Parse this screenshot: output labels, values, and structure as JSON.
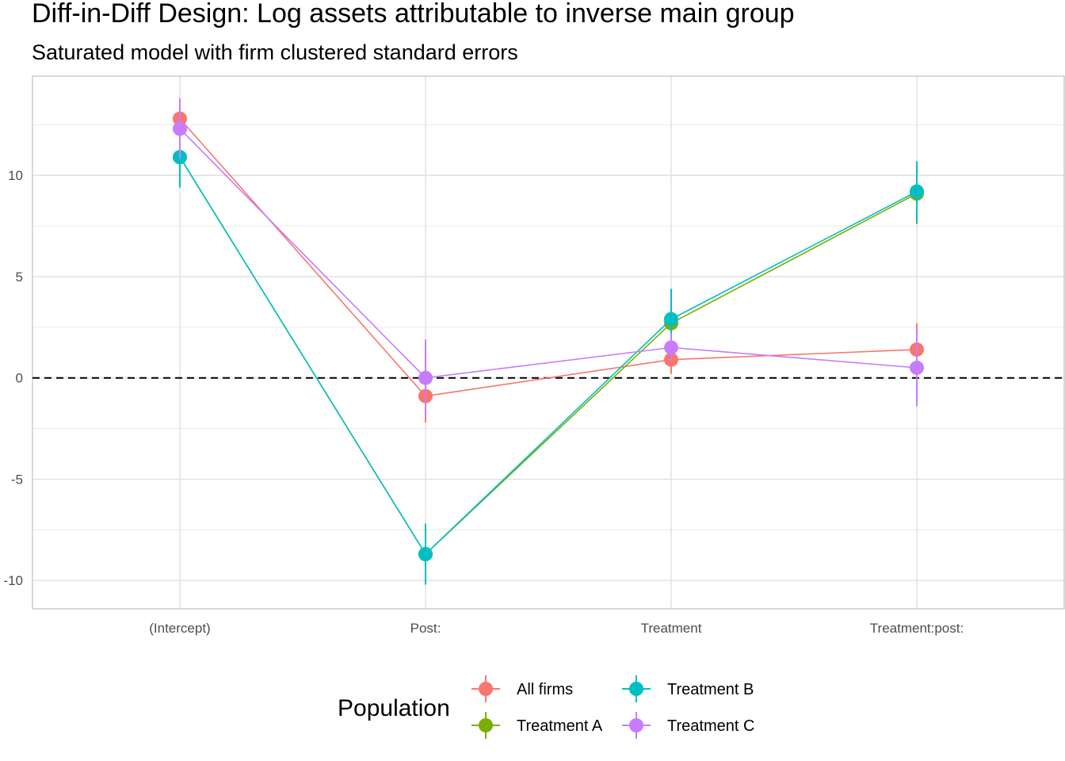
{
  "chart_data": {
    "type": "line",
    "title": "Diff-in-Diff Design: Log assets attributable to inverse main group",
    "subtitle": "Saturated model with firm clustered standard errors",
    "xlabel": "",
    "ylabel": "",
    "categories": [
      "(Intercept)",
      "Post:",
      "Treatment",
      "Treatment:post:"
    ],
    "y_ticks": [
      -10,
      -5,
      0,
      5,
      10
    ],
    "y_tick_labels": [
      "-10",
      "-5",
      "0",
      "5",
      "10"
    ],
    "ylim": [
      -11.4,
      14.9
    ],
    "reference_line": {
      "y": 0,
      "style": "dashed"
    },
    "grid": true,
    "legend": {
      "title": "Population",
      "position": "bottom"
    },
    "series": [
      {
        "name": "All firms",
        "color": "#F8766D",
        "values": [
          12.8,
          -0.9,
          0.9,
          1.4
        ],
        "ci_low": [
          11.9,
          -2.2,
          0.2,
          0.1
        ],
        "ci_high": [
          13.6,
          0.3,
          1.6,
          2.7
        ]
      },
      {
        "name": "Treatment A",
        "color": "#7CAE00",
        "values": [
          10.9,
          -8.7,
          2.7,
          9.1
        ],
        "ci_low": [
          9.4,
          -10.2,
          1.2,
          7.6
        ],
        "ci_high": [
          12.4,
          -7.2,
          4.3,
          10.6
        ]
      },
      {
        "name": "Treatment B",
        "color": "#00BFC4",
        "values": [
          10.9,
          -8.7,
          2.9,
          9.2
        ],
        "ci_low": [
          9.4,
          -10.2,
          1.4,
          7.7
        ],
        "ci_high": [
          12.4,
          -7.2,
          4.4,
          10.7
        ]
      },
      {
        "name": "Treatment C",
        "color": "#C77CFF",
        "values": [
          12.3,
          0.0,
          1.5,
          0.5
        ],
        "ci_low": [
          10.8,
          -1.9,
          0.8,
          -1.4
        ],
        "ci_high": [
          13.8,
          1.9,
          2.2,
          2.4
        ]
      }
    ]
  }
}
